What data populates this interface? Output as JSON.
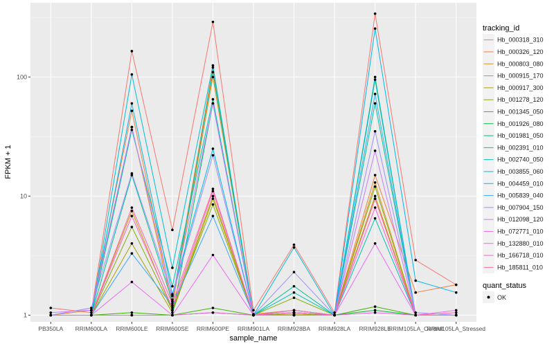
{
  "chart_data": {
    "type": "line",
    "title": "",
    "xlabel": "sample_name",
    "ylabel": "FPKM + 1",
    "y_scale": "log10",
    "ylim": [
      0.88,
      420
    ],
    "yticks": [
      1,
      10,
      100
    ],
    "ytick_labels": [
      "1",
      "10",
      "100"
    ],
    "grid": true,
    "background": "#ebebeb",
    "categories": [
      "PB350LA",
      "RRIM600LA",
      "RRIM600LE",
      "RRIM600SE",
      "RRIM600PE",
      "RRIM901LA",
      "RRIM928BA",
      "RRIM928LA",
      "RRIM928LE",
      "RRIM105LA_Control",
      "RRIM105LA_Stressed"
    ],
    "legend": {
      "title": "tracking_id",
      "placement": "right",
      "status_title": "quant_status",
      "status_label": "OK"
    },
    "series": [
      {
        "name": "Hb_000318_310",
        "color": "#F8766D",
        "values": [
          1.15,
          1.05,
          165,
          5.2,
          290,
          1.1,
          3.9,
          1.05,
          340,
          2.9,
          1.8
        ]
      },
      {
        "name": "Hb_000326_120",
        "color": "#F07F3F",
        "values": [
          1.0,
          1.1,
          52,
          1.3,
          120,
          1.02,
          1.1,
          1.0,
          15,
          1.55,
          1.8
        ]
      },
      {
        "name": "Hb_000803_080",
        "color": "#E0901F",
        "values": [
          1.0,
          1.0,
          38,
          1.2,
          100,
          1.0,
          1.05,
          1.0,
          13,
          1.0,
          1.0
        ]
      },
      {
        "name": "Hb_000915_170",
        "color": "#C99A0B",
        "values": [
          1.0,
          1.0,
          7.5,
          1.1,
          10,
          1.0,
          1.05,
          1.0,
          10,
          1.0,
          1.0
        ]
      },
      {
        "name": "Hb_000917_300",
        "color": "#A8A300",
        "values": [
          1.0,
          1.0,
          4.0,
          1.05,
          9.5,
          1.0,
          1.02,
          1.0,
          9.5,
          1.0,
          1.0
        ]
      },
      {
        "name": "Hb_001278_120",
        "color": "#80AD00",
        "values": [
          1.0,
          1.0,
          5.5,
          1.1,
          8.5,
          1.0,
          1.4,
          1.0,
          12,
          1.0,
          1.0
        ]
      },
      {
        "name": "Hb_001345_050",
        "color": "#3EB500",
        "values": [
          1.0,
          1.0,
          1.05,
          1.0,
          1.15,
          1.0,
          1.0,
          1.0,
          1.18,
          1.0,
          1.0
        ]
      },
      {
        "name": "Hb_001926_080",
        "color": "#00BA38",
        "values": [
          1.0,
          1.0,
          1.0,
          1.0,
          1.05,
          1.0,
          1.0,
          1.0,
          1.1,
          1.0,
          1.0
        ]
      },
      {
        "name": "Hb_001981_050",
        "color": "#00BE6C",
        "values": [
          1.0,
          1.0,
          1.0,
          1.0,
          60,
          1.0,
          1.05,
          1.0,
          95,
          1.0,
          1.0
        ]
      },
      {
        "name": "Hb_002391_010",
        "color": "#00C094",
        "values": [
          1.0,
          1.0,
          15,
          1.3,
          110,
          1.0,
          1.75,
          1.0,
          60,
          1.0,
          1.0
        ]
      },
      {
        "name": "Hb_002740_050",
        "color": "#00C0B5",
        "values": [
          1.0,
          1.0,
          36,
          1.75,
          65,
          1.0,
          1.55,
          1.0,
          6.5,
          1.0,
          1.0
        ]
      },
      {
        "name": "Hb_003855_060",
        "color": "#00BDD2",
        "values": [
          1.0,
          1.0,
          105,
          2.5,
          125,
          1.0,
          3.7,
          1.0,
          100,
          1.0,
          1.0
        ]
      },
      {
        "name": "Hb_004459_010",
        "color": "#00B6EB",
        "values": [
          1.0,
          1.0,
          60,
          1.5,
          25,
          1.0,
          1.1,
          1.0,
          255,
          1.95,
          1.55
        ]
      },
      {
        "name": "Hb_005839_040",
        "color": "#39A8FF",
        "values": [
          1.0,
          1.0,
          3.3,
          1.2,
          6.8,
          1.0,
          1.05,
          1.0,
          72,
          1.0,
          1.0
        ]
      },
      {
        "name": "Hb_007904_150",
        "color": "#9A8FFF",
        "values": [
          1.0,
          1.15,
          15.5,
          1.45,
          22,
          1.0,
          2.3,
          1.0,
          35,
          1.05,
          1.0
        ]
      },
      {
        "name": "Hb_012098_120",
        "color": "#C77CFF",
        "values": [
          1.05,
          1.1,
          38,
          1.35,
          60,
          1.0,
          1.0,
          1.0,
          24,
          1.0,
          1.0
        ]
      },
      {
        "name": "Hb_072771_010",
        "color": "#E76BF3",
        "values": [
          1.0,
          1.0,
          1.9,
          1.0,
          3.2,
          1.0,
          1.0,
          1.0,
          4.0,
          1.0,
          1.1
        ]
      },
      {
        "name": "Hb_132880_010",
        "color": "#F763E0",
        "values": [
          1.0,
          1.0,
          1.0,
          1.0,
          1.05,
          1.0,
          1.0,
          1.0,
          1.05,
          1.0,
          1.0
        ]
      },
      {
        "name": "Hb_166718_010",
        "color": "#FF61C3",
        "values": [
          1.0,
          1.0,
          6.8,
          1.15,
          11,
          1.0,
          1.05,
          1.0,
          8.0,
          1.0,
          1.0
        ]
      },
      {
        "name": "Hb_185811_010",
        "color": "#FF67A4",
        "values": [
          1.0,
          1.0,
          8.0,
          1.25,
          11.5,
          1.0,
          1.1,
          1.0,
          9.5,
          1.0,
          1.05
        ]
      }
    ]
  }
}
